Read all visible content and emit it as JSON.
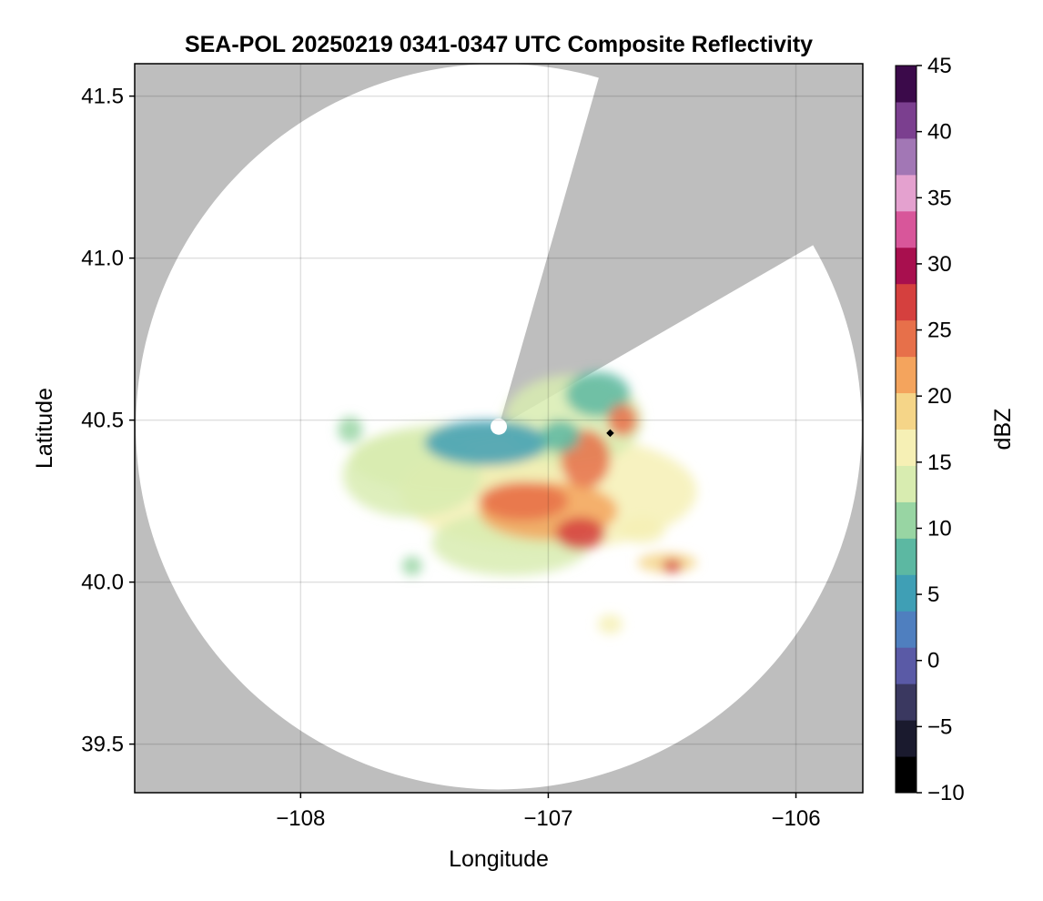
{
  "chart_data": {
    "type": "heatmap",
    "title": "SEA-POL 20250219 0341-0347 UTC Composite Reflectivity",
    "xlabel": "Longitude",
    "ylabel": "Latitude",
    "xlim": [
      -108.67,
      -105.73
    ],
    "ylim": [
      39.35,
      41.6
    ],
    "x_ticks": [
      -108,
      -107,
      -106
    ],
    "x_tick_labels": [
      "−108",
      "−107",
      "−106"
    ],
    "y_ticks": [
      39.5,
      40.0,
      40.5,
      41.0,
      41.5
    ],
    "y_tick_labels": [
      "39.5",
      "40.0",
      "40.5",
      "41.0",
      "41.5"
    ],
    "grid": true,
    "background_color": "#bebebe",
    "coverage_color": "#ffffff",
    "radar_center": [
      -107.2,
      40.48
    ],
    "radar_range_deg_lat": 1.12,
    "blocked_sectors_deg_from_north": [
      [
        16,
        60
      ]
    ],
    "station_marker": [
      -106.75,
      40.46
    ],
    "colorbar": {
      "label": "dBZ",
      "min": -10,
      "max": 45,
      "ticks": [
        -10,
        -5,
        0,
        5,
        10,
        15,
        20,
        25,
        30,
        35,
        40,
        45
      ],
      "tick_labels": [
        "−10",
        "−5",
        "0",
        "5",
        "10",
        "15",
        "20",
        "25",
        "30",
        "35",
        "40",
        "45"
      ],
      "colors": [
        "#000000",
        "#1a1a2e",
        "#3a3860",
        "#5a5aa6",
        "#4f7fbf",
        "#3f9fb5",
        "#5cb8a2",
        "#98d5a3",
        "#d8ecb0",
        "#f6f0b5",
        "#f5d588",
        "#f4a45d",
        "#e7704a",
        "#d5403e",
        "#a80f4e",
        "#d8569a",
        "#e4a1cf",
        "#a277b5",
        "#7b3f8f",
        "#3b0a4a"
      ]
    },
    "echo_regions": [
      {
        "lon": -107.35,
        "lat": 40.38,
        "rx": 0.45,
        "ry": 0.11,
        "dbz": 14
      },
      {
        "lon": -107.0,
        "lat": 40.28,
        "rx": 0.6,
        "ry": 0.18,
        "dbz": 15
      },
      {
        "lon": -107.55,
        "lat": 40.33,
        "rx": 0.28,
        "ry": 0.13,
        "dbz": 13
      },
      {
        "lon": -106.9,
        "lat": 40.5,
        "rx": 0.28,
        "ry": 0.14,
        "dbz": 13
      },
      {
        "lon": -107.25,
        "lat": 40.43,
        "rx": 0.25,
        "ry": 0.07,
        "dbz": 6
      },
      {
        "lon": -106.8,
        "lat": 40.58,
        "rx": 0.13,
        "ry": 0.07,
        "dbz": 9
      },
      {
        "lon": -107.15,
        "lat": 40.12,
        "rx": 0.32,
        "ry": 0.1,
        "dbz": 12
      },
      {
        "lon": -107.0,
        "lat": 40.22,
        "rx": 0.28,
        "ry": 0.09,
        "dbz": 22
      },
      {
        "lon": -107.1,
        "lat": 40.25,
        "rx": 0.18,
        "ry": 0.06,
        "dbz": 25
      },
      {
        "lon": -106.87,
        "lat": 40.15,
        "rx": 0.1,
        "ry": 0.05,
        "dbz": 27
      },
      {
        "lon": -106.85,
        "lat": 40.38,
        "rx": 0.1,
        "ry": 0.09,
        "dbz": 24
      },
      {
        "lon": -106.7,
        "lat": 40.5,
        "rx": 0.06,
        "ry": 0.05,
        "dbz": 24
      },
      {
        "lon": -106.62,
        "lat": 40.16,
        "rx": 0.09,
        "ry": 0.04,
        "dbz": 16
      },
      {
        "lon": -106.52,
        "lat": 40.06,
        "rx": 0.12,
        "ry": 0.03,
        "dbz": 20
      },
      {
        "lon": -106.5,
        "lat": 40.05,
        "rx": 0.04,
        "ry": 0.02,
        "dbz": 27
      },
      {
        "lon": -107.8,
        "lat": 40.47,
        "rx": 0.05,
        "ry": 0.04,
        "dbz": 11
      },
      {
        "lon": -107.55,
        "lat": 40.05,
        "rx": 0.04,
        "ry": 0.03,
        "dbz": 11
      },
      {
        "lon": -106.75,
        "lat": 39.87,
        "rx": 0.05,
        "ry": 0.03,
        "dbz": 15
      },
      {
        "lon": -106.95,
        "lat": 40.45,
        "rx": 0.08,
        "ry": 0.05,
        "dbz": 7
      }
    ]
  }
}
